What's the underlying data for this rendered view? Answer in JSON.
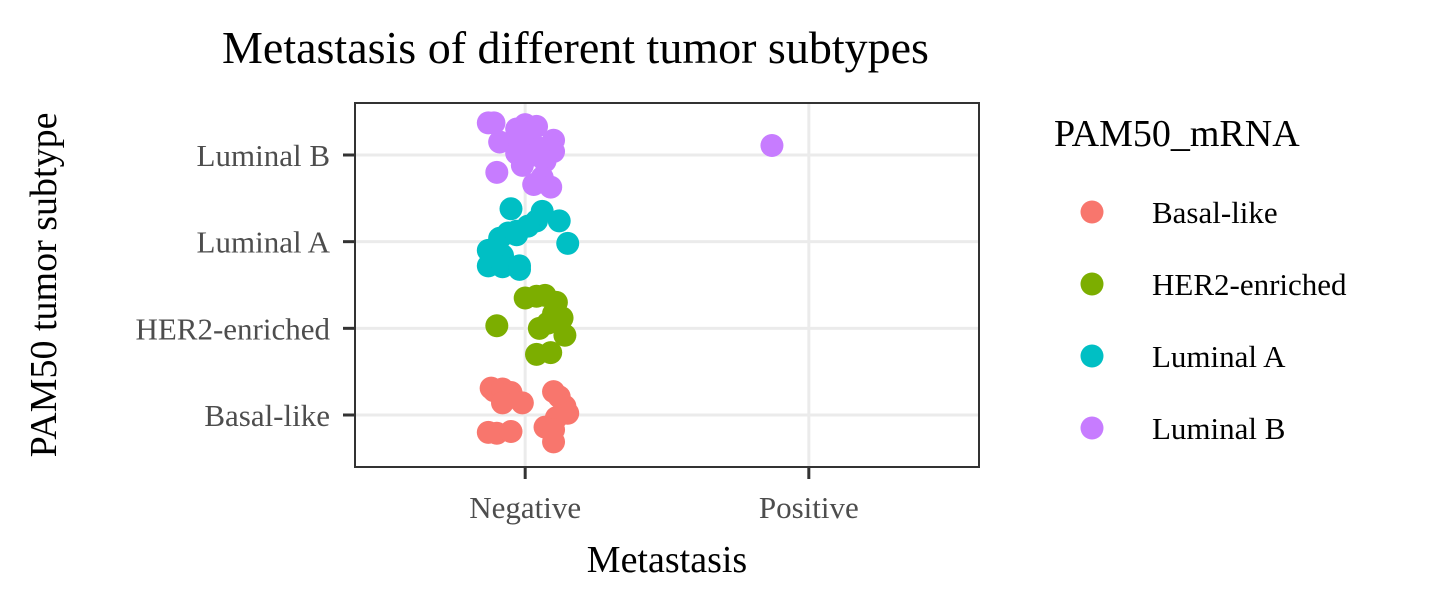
{
  "chart_data": {
    "type": "scatter",
    "subtype": "jitter",
    "title": "Metastasis of different tumor subtypes",
    "xlabel": "Metastasis",
    "ylabel": "PAM50 tumor subtype",
    "x_categories": [
      "Negative",
      "Positive"
    ],
    "y_categories": [
      "Basal-like",
      "HER2-enriched",
      "Luminal A",
      "Luminal B"
    ],
    "grid": true,
    "legend": {
      "title": "PAM50_mRNA",
      "placement": "right",
      "entries": [
        "Basal-like",
        "HER2-enriched",
        "Luminal A",
        "Luminal B"
      ]
    },
    "colors": {
      "Basal-like": "#F8766D",
      "HER2-enriched": "#7CAE00",
      "Luminal A": "#00BFC4",
      "Luminal B": "#C77CFF"
    },
    "series": [
      {
        "name": "Basal-like",
        "points": [
          {
            "x": "Negative",
            "dx": -0.12,
            "dy": 0.31
          },
          {
            "x": "Negative",
            "dx": -0.11,
            "dy": 0.28
          },
          {
            "x": "Negative",
            "dx": -0.08,
            "dy": 0.3
          },
          {
            "x": "Negative",
            "dx": -0.05,
            "dy": 0.26
          },
          {
            "x": "Negative",
            "dx": -0.08,
            "dy": 0.14
          },
          {
            "x": "Negative",
            "dx": -0.01,
            "dy": 0.14
          },
          {
            "x": "Negative",
            "dx": 0.1,
            "dy": 0.27
          },
          {
            "x": "Negative",
            "dx": 0.12,
            "dy": 0.21
          },
          {
            "x": "Negative",
            "dx": 0.14,
            "dy": 0.1
          },
          {
            "x": "Negative",
            "dx": 0.15,
            "dy": 0.02
          },
          {
            "x": "Negative",
            "dx": 0.11,
            "dy": -0.03
          },
          {
            "x": "Negative",
            "dx": 0.07,
            "dy": -0.14
          },
          {
            "x": "Negative",
            "dx": 0.1,
            "dy": -0.17
          },
          {
            "x": "Negative",
            "dx": 0.1,
            "dy": -0.31
          },
          {
            "x": "Negative",
            "dx": -0.13,
            "dy": -0.2
          },
          {
            "x": "Negative",
            "dx": -0.1,
            "dy": -0.21
          },
          {
            "x": "Negative",
            "dx": -0.05,
            "dy": -0.19
          }
        ]
      },
      {
        "name": "HER2-enriched",
        "points": [
          {
            "x": "Negative",
            "dx": 0.0,
            "dy": 0.35
          },
          {
            "x": "Negative",
            "dx": 0.04,
            "dy": 0.37
          },
          {
            "x": "Negative",
            "dx": 0.07,
            "dy": 0.38
          },
          {
            "x": "Negative",
            "dx": 0.11,
            "dy": 0.3
          },
          {
            "x": "Negative",
            "dx": 0.1,
            "dy": 0.17
          },
          {
            "x": "Negative",
            "dx": 0.13,
            "dy": 0.12
          },
          {
            "x": "Negative",
            "dx": 0.08,
            "dy": 0.06
          },
          {
            "x": "Negative",
            "dx": 0.05,
            "dy": 0.0
          },
          {
            "x": "Negative",
            "dx": 0.14,
            "dy": -0.08
          },
          {
            "x": "Negative",
            "dx": 0.09,
            "dy": -0.28
          },
          {
            "x": "Negative",
            "dx": 0.04,
            "dy": -0.3
          },
          {
            "x": "Negative",
            "dx": -0.1,
            "dy": 0.03
          }
        ]
      },
      {
        "name": "Luminal A",
        "points": [
          {
            "x": "Negative",
            "dx": -0.05,
            "dy": 0.38
          },
          {
            "x": "Negative",
            "dx": 0.06,
            "dy": 0.35
          },
          {
            "x": "Negative",
            "dx": 0.12,
            "dy": 0.24
          },
          {
            "x": "Negative",
            "dx": 0.04,
            "dy": 0.24
          },
          {
            "x": "Negative",
            "dx": 0.01,
            "dy": 0.18
          },
          {
            "x": "Negative",
            "dx": -0.03,
            "dy": 0.12
          },
          {
            "x": "Negative",
            "dx": -0.06,
            "dy": 0.1
          },
          {
            "x": "Negative",
            "dx": -0.09,
            "dy": 0.04
          },
          {
            "x": "Negative",
            "dx": -0.03,
            "dy": 0.08
          },
          {
            "x": "Negative",
            "dx": 0.15,
            "dy": -0.02
          },
          {
            "x": "Negative",
            "dx": -0.13,
            "dy": -0.1
          },
          {
            "x": "Negative",
            "dx": -0.08,
            "dy": -0.16
          },
          {
            "x": "Negative",
            "dx": -0.13,
            "dy": -0.28
          },
          {
            "x": "Negative",
            "dx": -0.08,
            "dy": -0.29
          },
          {
            "x": "Negative",
            "dx": -0.02,
            "dy": -0.28
          },
          {
            "x": "Negative",
            "dx": -0.02,
            "dy": -0.32
          }
        ]
      },
      {
        "name": "Luminal B",
        "points": [
          {
            "x": "Negative",
            "dx": -0.13,
            "dy": 0.37
          },
          {
            "x": "Negative",
            "dx": -0.11,
            "dy": 0.37
          },
          {
            "x": "Negative",
            "dx": 0.0,
            "dy": 0.35
          },
          {
            "x": "Negative",
            "dx": 0.04,
            "dy": 0.33
          },
          {
            "x": "Negative",
            "dx": -0.03,
            "dy": 0.3
          },
          {
            "x": "Negative",
            "dx": 0.02,
            "dy": 0.26
          },
          {
            "x": "Negative",
            "dx": 0.1,
            "dy": 0.17
          },
          {
            "x": "Negative",
            "dx": -0.09,
            "dy": 0.15
          },
          {
            "x": "Negative",
            "dx": -0.02,
            "dy": 0.13
          },
          {
            "x": "Negative",
            "dx": 0.05,
            "dy": 0.08
          },
          {
            "x": "Negative",
            "dx": 0.1,
            "dy": 0.04
          },
          {
            "x": "Negative",
            "dx": -0.03,
            "dy": 0.02
          },
          {
            "x": "Negative",
            "dx": 0.03,
            "dy": 0.0
          },
          {
            "x": "Negative",
            "dx": 0.07,
            "dy": -0.07
          },
          {
            "x": "Negative",
            "dx": -0.01,
            "dy": -0.12
          },
          {
            "x": "Negative",
            "dx": -0.1,
            "dy": -0.2
          },
          {
            "x": "Negative",
            "dx": 0.06,
            "dy": -0.26
          },
          {
            "x": "Negative",
            "dx": 0.03,
            "dy": -0.34
          },
          {
            "x": "Negative",
            "dx": 0.09,
            "dy": -0.37
          },
          {
            "x": "Positive",
            "dx": -0.13,
            "dy": 0.11
          }
        ]
      }
    ]
  }
}
